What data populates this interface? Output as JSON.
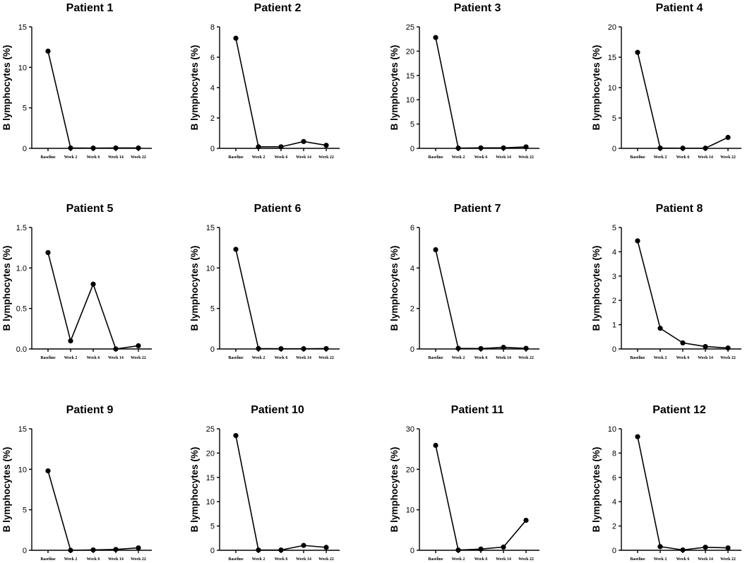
{
  "chart_data": [
    {
      "type": "line",
      "title": "Patient 1",
      "ylabel": "B lymphocytes (%)",
      "categories": [
        "Baseline",
        "Week 2",
        "Week 6",
        "Week 14",
        "Week 22"
      ],
      "values": [
        12.0,
        0.05,
        0.03,
        0.05,
        0.05
      ],
      "ylim": [
        0,
        15
      ],
      "yticks": [
        0,
        5,
        10,
        15
      ]
    },
    {
      "type": "line",
      "title": "Patient 2",
      "ylabel": "B lymphocytes (%)",
      "categories": [
        "Baseline",
        "Week 2",
        "Week 6",
        "Week 14",
        "Week 22"
      ],
      "values": [
        7.25,
        0.1,
        0.1,
        0.45,
        0.2
      ],
      "ylim": [
        0,
        8
      ],
      "yticks": [
        0,
        2,
        4,
        6,
        8
      ]
    },
    {
      "type": "line",
      "title": "Patient 3",
      "ylabel": "B lymphocytes (%)",
      "categories": [
        "Baseline",
        "Week 2",
        "Week 6",
        "Week 14",
        "Week 22"
      ],
      "values": [
        22.8,
        0.05,
        0.1,
        0.1,
        0.3
      ],
      "ylim": [
        0,
        25
      ],
      "yticks": [
        0,
        5,
        10,
        15,
        20,
        25
      ]
    },
    {
      "type": "line",
      "title": "Patient 4",
      "ylabel": "B lymphocytes (%)",
      "categories": [
        "Baseline",
        "Week 2",
        "Week 6",
        "Week 14",
        "Week 22"
      ],
      "values": [
        15.8,
        0.05,
        0.03,
        0.03,
        1.8
      ],
      "ylim": [
        0,
        20
      ],
      "yticks": [
        0,
        5,
        10,
        15,
        20
      ]
    },
    {
      "type": "line",
      "title": "Patient 5",
      "ylabel": "B lymphocytes (%)",
      "categories": [
        "Baseline",
        "Week 2",
        "Week 6",
        "Week 14",
        "Week 22"
      ],
      "values": [
        1.19,
        0.1,
        0.8,
        0.0,
        0.04
      ],
      "ylim": [
        0,
        1.5
      ],
      "yticks": [
        0.0,
        0.5,
        1.0,
        1.5
      ],
      "ytick_decimals": 1
    },
    {
      "type": "line",
      "title": "Patient 6",
      "ylabel": "B lymphocytes (%)",
      "categories": [
        "Baseline",
        "Week 2",
        "Week 6",
        "Week 14",
        "Week 22"
      ],
      "values": [
        12.3,
        0.05,
        0.03,
        0.03,
        0.05
      ],
      "ylim": [
        0,
        15
      ],
      "yticks": [
        0,
        5,
        10,
        15
      ]
    },
    {
      "type": "line",
      "title": "Patient 7",
      "ylabel": "B lymphocytes (%)",
      "categories": [
        "Baseline",
        "Week 2",
        "Week 6",
        "Week 14",
        "Week 22"
      ],
      "values": [
        4.9,
        0.03,
        0.02,
        0.08,
        0.03
      ],
      "ylim": [
        0,
        6
      ],
      "yticks": [
        0,
        2,
        4,
        6
      ]
    },
    {
      "type": "line",
      "title": "Patient 8",
      "ylabel": "B lymphocytes (%)",
      "categories": [
        "Baseline",
        "Week 2",
        "Week 6",
        "Week 14",
        "Week 22"
      ],
      "values": [
        4.45,
        0.85,
        0.25,
        0.1,
        0.04
      ],
      "ylim": [
        0,
        5
      ],
      "yticks": [
        0,
        1,
        2,
        3,
        4,
        5
      ]
    },
    {
      "type": "line",
      "title": "Patient 9",
      "ylabel": "B lymphocytes (%)",
      "categories": [
        "Baseline",
        "Week 2",
        "Week 6",
        "Week 14",
        "Week 22"
      ],
      "values": [
        9.8,
        0.0,
        0.05,
        0.1,
        0.3
      ],
      "ylim": [
        0,
        15
      ],
      "yticks": [
        0,
        5,
        10,
        15
      ]
    },
    {
      "type": "line",
      "title": "Patient 10",
      "ylabel": "B lymphocytes (%)",
      "categories": [
        "Baseline",
        "Week 2",
        "Week 6",
        "Week 14",
        "Week 22"
      ],
      "values": [
        23.6,
        0.05,
        0.05,
        1.0,
        0.6
      ],
      "ylim": [
        0,
        25
      ],
      "yticks": [
        0,
        5,
        10,
        15,
        20,
        25
      ]
    },
    {
      "type": "line",
      "title": "Patient 11",
      "ylabel": "B lymphocytes (%)",
      "categories": [
        "Baseline",
        "Week 2",
        "Week 6",
        "Week 14",
        "Week 22"
      ],
      "values": [
        25.9,
        0.05,
        0.3,
        0.8,
        7.4
      ],
      "ylim": [
        0,
        30
      ],
      "yticks": [
        0,
        10,
        20,
        30
      ]
    },
    {
      "type": "line",
      "title": "Patient 12",
      "ylabel": "B lymphocytes (%)",
      "categories": [
        "Baseline",
        "Week 2",
        "Week 6",
        "Week 14",
        "Week 22"
      ],
      "values": [
        9.35,
        0.3,
        0.03,
        0.25,
        0.2
      ],
      "ylim": [
        0,
        10
      ],
      "yticks": [
        0,
        2,
        4,
        6,
        8,
        10
      ]
    }
  ]
}
